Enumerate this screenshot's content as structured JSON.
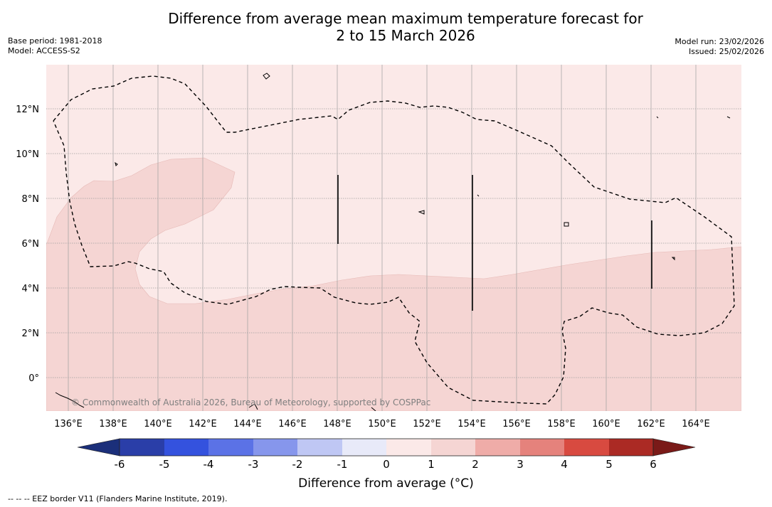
{
  "title_line1": "Difference from average mean maximum temperature forecast for",
  "title_line2": "2 to 15 March 2026",
  "base_period": "Base period: 1981-2018",
  "model": "Model: ACCESS-S2",
  "model_run": "Model run: 23/02/2026",
  "issued": "Issued: 25/02/2026",
  "copyright": "© Commonwealth of Australia 2026, Bureau of Meteorology, supported by COSPPac",
  "footnote": "--  --  -- EEZ border V11 (Flanders Marine Institute, 2019).",
  "colorbar": {
    "label": "Difference from average (°C)",
    "ticks": [
      "-6",
      "-5",
      "-4",
      "-3",
      "-2",
      "-1",
      "0",
      "1",
      "2",
      "3",
      "4",
      "5",
      "6"
    ],
    "colors": {
      "under": "#1b2f7a",
      "b_-6_-5": "#2a3ea8",
      "b_-5_-4": "#3452de",
      "b_-4_-3": "#5b72e6",
      "b_-3_-2": "#8696ec",
      "b_-2_-1": "#bfc7f4",
      "b_-1_0": "#e8eaf9",
      "b_0_1": "#fbe9e8",
      "b_1_2": "#f5d5d3",
      "b_2_3": "#efaca8",
      "b_3_4": "#e5827c",
      "b_4_5": "#d84a40",
      "b_5_6": "#ab2a24",
      "over": "#7a1a18"
    }
  },
  "map": {
    "lon_labels": [
      "136°E",
      "138°E",
      "140°E",
      "142°E",
      "144°E",
      "146°E",
      "148°E",
      "150°E",
      "152°E",
      "154°E",
      "156°E",
      "158°E",
      "160°E",
      "162°E",
      "164°E"
    ],
    "lat_labels": [
      "12°N",
      "10°N",
      "8°N",
      "6°N",
      "4°N",
      "2°N",
      "0°"
    ],
    "lon_range": [
      135,
      166
    ],
    "lat_range": [
      -1.5,
      14
    ],
    "regions": [
      {
        "category": "0 to 1 °C",
        "color": "#fbe9e8"
      },
      {
        "category": "1 to 2 °C",
        "color": "#f5d5d3"
      }
    ]
  }
}
